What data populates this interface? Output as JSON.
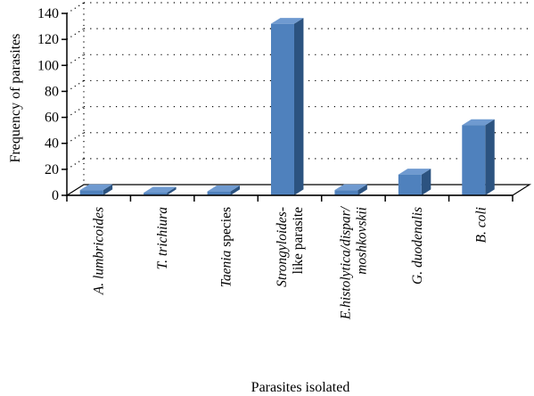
{
  "chart_data": {
    "type": "bar",
    "title": "",
    "xlabel": "Parasites isolated",
    "ylabel": "Frequency of parasites",
    "ylim": [
      0,
      140
    ],
    "yticks": [
      0,
      20,
      40,
      60,
      80,
      100,
      120,
      140
    ],
    "grid": true,
    "grid_style": "dotted",
    "bar_style": "3d",
    "categories": [
      {
        "parts": [
          {
            "text": "A. lumbricoides",
            "italic": true
          }
        ]
      },
      {
        "parts": [
          {
            "text": "T. trichiura",
            "italic": true
          }
        ]
      },
      {
        "parts": [
          {
            "text": "Taenia",
            "italic": true
          },
          {
            "text": " species",
            "italic": false
          }
        ]
      },
      {
        "lines": [
          [
            {
              "text": "Strongyloides-",
              "italic": true
            }
          ],
          [
            {
              "text": "like parasite",
              "italic": false
            }
          ]
        ]
      },
      {
        "lines": [
          [
            {
              "text": "E.histolytica/dispar/",
              "italic": true
            }
          ],
          [
            {
              "text": "moshkovskii",
              "italic": true
            }
          ]
        ]
      },
      {
        "parts": [
          {
            "text": "G. duodenalis",
            "italic": true
          }
        ]
      },
      {
        "parts": [
          {
            "text": "B. coli",
            "italic": true
          }
        ]
      }
    ],
    "values": [
      4,
      2,
      3,
      132,
      4,
      16,
      54
    ],
    "colors": {
      "front": "#4F81BD",
      "side": "#2C5380",
      "top": "#6F9AD0",
      "axis": "#000000",
      "grid": "#000000"
    }
  }
}
